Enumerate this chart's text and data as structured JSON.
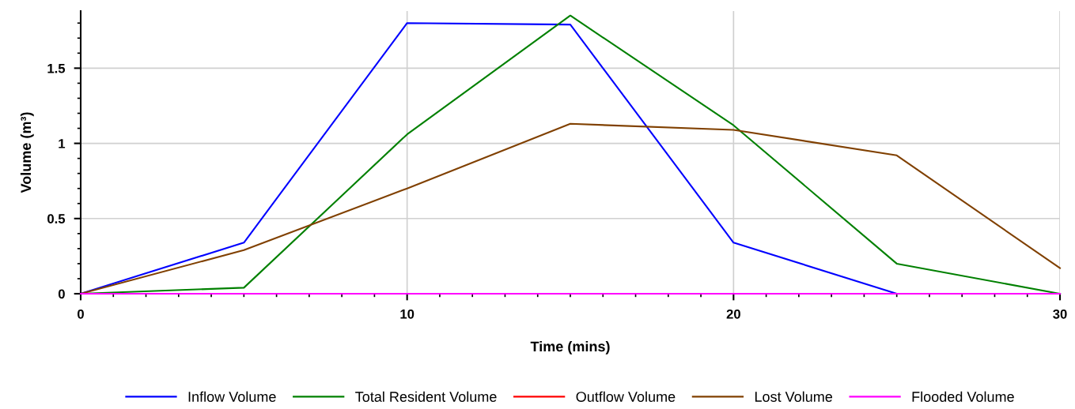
{
  "chart_data": {
    "type": "line",
    "xlabel": "Time (mins)",
    "ylabel": "Volume (m³)",
    "x": [
      0,
      5,
      10,
      15,
      20,
      25,
      30
    ],
    "series": [
      {
        "name": "Inflow Volume",
        "color": "#0000ff",
        "values": [
          0,
          0.34,
          1.8,
          1.79,
          0.34,
          0,
          0
        ]
      },
      {
        "name": "Total Resident Volume",
        "color": "#008000",
        "values": [
          0,
          0.04,
          1.06,
          1.85,
          1.12,
          0.2,
          0
        ]
      },
      {
        "name": "Outflow Volume",
        "color": "#ff0000",
        "values": [
          null,
          null,
          null,
          null,
          null,
          null,
          null
        ]
      },
      {
        "name": "Lost Volume",
        "color": "#804000",
        "values": [
          0,
          0.29,
          0.7,
          1.13,
          1.09,
          0.92,
          0.17
        ]
      },
      {
        "name": "Flooded Volume",
        "color": "#ff00ff",
        "values": [
          0,
          0,
          0,
          0,
          0,
          0,
          0
        ]
      }
    ],
    "xlim": [
      0,
      30
    ],
    "xticks": [
      0,
      10,
      20,
      30
    ],
    "ylim": [
      0,
      1.88
    ],
    "yticks": [
      0,
      0.5,
      {
        "value": 1,
        "label": "1"
      },
      1.5
    ],
    "grid": true,
    "legend": "bottom",
    "marker": "none",
    "line_style": "solid"
  }
}
